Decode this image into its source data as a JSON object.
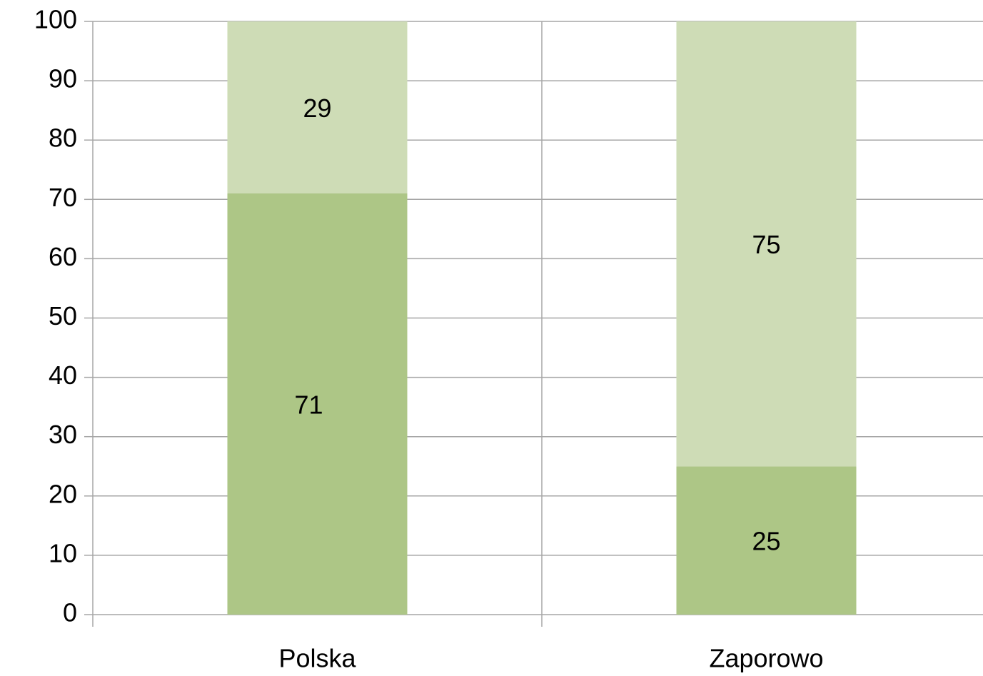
{
  "chart_data": {
    "type": "stacked_bar",
    "categories": [
      "Polska",
      "Zaporowo"
    ],
    "series": [
      {
        "color": "#adc686",
        "values": [
          71,
          25
        ]
      },
      {
        "color": "#cedcb6",
        "values": [
          29,
          75
        ]
      }
    ],
    "ylim": [
      0,
      100
    ],
    "yticks": [
      0,
      10,
      20,
      30,
      40,
      50,
      60,
      70,
      80,
      90,
      100
    ],
    "grid": true
  }
}
